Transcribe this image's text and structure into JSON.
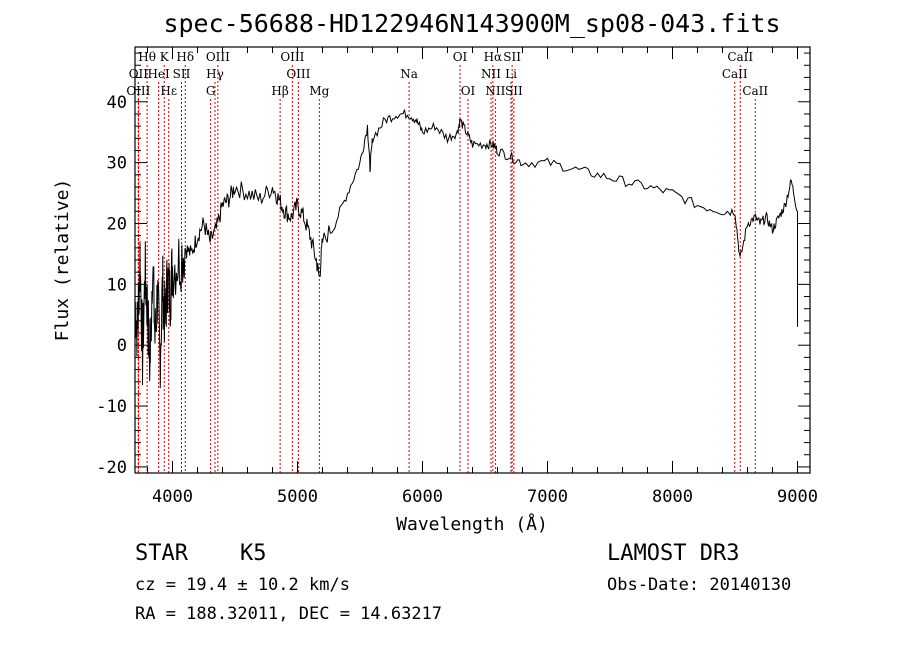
{
  "chart_data": {
    "type": "line",
    "title": "spec-56688-HD122946N143900M_sp08-043.fits",
    "xlabel": "Wavelength (Å)",
    "ylabel": "Flux (relative)",
    "xlim": [
      3700,
      9100
    ],
    "ylim": [
      -21,
      49
    ],
    "xticks": [
      4000,
      5000,
      6000,
      7000,
      8000,
      9000
    ],
    "yticks": [
      -20,
      -10,
      0,
      10,
      20,
      30,
      40
    ],
    "series": [
      {
        "name": "flux",
        "x": [
          3700,
          3720,
          3740,
          3760,
          3780,
          3800,
          3820,
          3840,
          3860,
          3880,
          3900,
          3920,
          3940,
          3960,
          3980,
          4000,
          4050,
          4100,
          4150,
          4200,
          4250,
          4300,
          4350,
          4400,
          4450,
          4500,
          4600,
          4700,
          4800,
          4850,
          4900,
          4950,
          5000,
          5050,
          5100,
          5150,
          5175,
          5200,
          5300,
          5400,
          5500,
          5560,
          5580,
          5600,
          5700,
          5800,
          5890,
          5950,
          6000,
          6100,
          6200,
          6280,
          6300,
          6350,
          6400,
          6500,
          6560,
          6600,
          6700,
          6800,
          7000,
          7200,
          7400,
          7600,
          7800,
          8000,
          8200,
          8400,
          8500,
          8540,
          8600,
          8660,
          8700,
          8750,
          8800,
          8850,
          8900,
          8950,
          9000
        ],
        "values": [
          7,
          2,
          15,
          -2,
          12,
          6,
          -4,
          14,
          1,
          9,
          -3,
          10,
          4,
          11,
          8,
          13,
          14,
          16,
          15,
          18,
          20,
          17,
          19,
          23,
          24,
          26,
          25,
          24,
          26,
          24,
          22,
          21,
          23,
          21,
          18,
          14,
          11,
          17,
          20,
          25,
          30,
          36,
          29,
          34,
          37,
          38,
          38,
          37,
          35,
          36,
          34,
          35,
          37,
          35,
          33,
          33,
          33,
          32,
          31,
          30,
          30,
          29,
          28,
          27,
          26,
          25,
          23,
          22,
          22,
          14,
          20,
          21,
          20,
          21,
          19,
          21,
          23,
          27,
          22
        ]
      }
    ],
    "spectral_lines": [
      {
        "label": "Hθ",
        "x": 3797,
        "row": 0
      },
      {
        "label": "K",
        "x": 3934,
        "row": 0
      },
      {
        "label": "Hδ",
        "x": 4102,
        "row": 0
      },
      {
        "label": "OIII",
        "x": 4363,
        "row": 0
      },
      {
        "label": "OIII",
        "x": 4959,
        "row": 0
      },
      {
        "label": "OI",
        "x": 6300,
        "row": 0
      },
      {
        "label": "Hα",
        "x": 6563,
        "row": 0
      },
      {
        "label": "SII",
        "x": 6717,
        "row": 0
      },
      {
        "label": "CaII",
        "x": 8542,
        "row": 0
      },
      {
        "label": "OII",
        "x": 3727,
        "row": 1
      },
      {
        "label": "HeI",
        "x": 3889,
        "row": 1
      },
      {
        "label": "SII",
        "x": 4072,
        "row": 1
      },
      {
        "label": "Hγ",
        "x": 4340,
        "row": 1
      },
      {
        "label": "OIII",
        "x": 5007,
        "row": 1
      },
      {
        "label": "Na",
        "x": 5893,
        "row": 1
      },
      {
        "label": "NII",
        "x": 6548,
        "row": 1
      },
      {
        "label": "Li",
        "x": 6708,
        "row": 1
      },
      {
        "label": "CaII",
        "x": 8498,
        "row": 1
      },
      {
        "label": "OIII",
        "x": 3727,
        "row": 2
      },
      {
        "label": "Hε",
        "x": 3970,
        "row": 2
      },
      {
        "label": "G",
        "x": 4305,
        "row": 2
      },
      {
        "label": "Hβ",
        "x": 4861,
        "row": 2
      },
      {
        "label": "Mg",
        "x": 5175,
        "row": 2
      },
      {
        "label": "OI",
        "x": 6364,
        "row": 2
      },
      {
        "label": "NII",
        "x": 6583,
        "row": 2
      },
      {
        "label": "SII",
        "x": 6731,
        "row": 2
      },
      {
        "label": "CaII",
        "x": 8662,
        "row": 2
      }
    ]
  },
  "info": {
    "star_type": "STAR",
    "subclass": "K5",
    "survey": "LAMOST DR3",
    "cz": "cz = 19.4 ± 10.2 km/s",
    "obs_date": "Obs-Date: 20140130",
    "coords": "RA = 188.32011, DEC =  14.63217"
  },
  "colors": {
    "line_marker": "#cc0000",
    "trace": "#000000"
  }
}
